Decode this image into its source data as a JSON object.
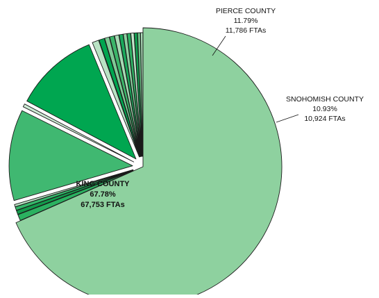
{
  "chart_data": {
    "type": "pie",
    "title": "",
    "legend": "none",
    "slices": [
      {
        "name": "KING COUNTY",
        "percent_label": "67.78%",
        "fta_label": "67,753 FTAs",
        "value": 67.78,
        "color": "#8ed19f",
        "exploded": true
      },
      {
        "name": "",
        "value": 0.8,
        "color": "#2bb160",
        "exploded": true
      },
      {
        "name": "",
        "value": 0.5,
        "color": "#139a4b",
        "exploded": true
      },
      {
        "name": "",
        "value": 0.45,
        "color": "#35b76a",
        "exploded": true
      },
      {
        "name": "",
        "value": 0.3,
        "color": "#b7e2c2",
        "exploded": true
      },
      {
        "name": "PIERCE COUNTY",
        "percent_label": "11.79%",
        "fta_label": "11,786 FTAs",
        "value": 11.79,
        "color": "#40b871",
        "exploded": true
      },
      {
        "name": "",
        "value": 0.4,
        "color": "#cdebd5",
        "exploded": true
      },
      {
        "name": "SNOHOMISH COUNTY",
        "percent_label": "10.93%",
        "fta_label": "10,924 FTAs",
        "value": 10.93,
        "color": "#00a650",
        "exploded": true
      },
      {
        "name": "",
        "value": 0.85,
        "color": "#b9e3c4",
        "exploded": true
      },
      {
        "name": "",
        "value": 0.7,
        "color": "#00a650",
        "exploded": true
      },
      {
        "name": "",
        "value": 0.6,
        "color": "#7fca96",
        "exploded": true
      },
      {
        "name": "",
        "value": 0.6,
        "color": "#3cb56a",
        "exploded": true
      },
      {
        "name": "",
        "value": 0.55,
        "color": "#a7dbb5",
        "exploded": true
      },
      {
        "name": "",
        "value": 0.5,
        "color": "#1aa85b",
        "exploded": true
      },
      {
        "name": "",
        "value": 0.45,
        "color": "#8fd0a2",
        "exploded": true
      },
      {
        "name": "",
        "value": 0.45,
        "color": "#2fb064",
        "exploded": true
      },
      {
        "name": "",
        "value": 0.4,
        "color": "#c3e7cc",
        "exploded": true
      },
      {
        "name": "",
        "value": 0.4,
        "color": "#119e50",
        "exploded": true
      },
      {
        "name": "",
        "value": 0.35,
        "color": "#6fc489",
        "exploded": true
      },
      {
        "name": "",
        "value": 0.3,
        "color": "#b0dfbd",
        "exploded": true
      }
    ]
  }
}
